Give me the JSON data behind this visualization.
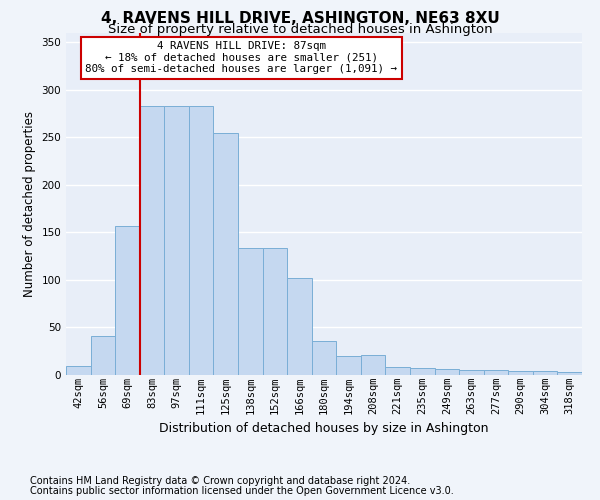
{
  "title": "4, RAVENS HILL DRIVE, ASHINGTON, NE63 8XU",
  "subtitle": "Size of property relative to detached houses in Ashington",
  "xlabel": "Distribution of detached houses by size in Ashington",
  "ylabel": "Number of detached properties",
  "bin_labels": [
    "42sqm",
    "56sqm",
    "69sqm",
    "83sqm",
    "97sqm",
    "111sqm",
    "125sqm",
    "138sqm",
    "152sqm",
    "166sqm",
    "180sqm",
    "194sqm",
    "208sqm",
    "221sqm",
    "235sqm",
    "249sqm",
    "263sqm",
    "277sqm",
    "290sqm",
    "304sqm",
    "318sqm"
  ],
  "bar_heights": [
    9,
    41,
    157,
    283,
    283,
    283,
    254,
    133,
    133,
    102,
    36,
    20,
    21,
    8,
    7,
    6,
    5,
    5,
    4,
    4,
    3
  ],
  "bar_color": "#c5d8f0",
  "bar_edge_color": "#7aaed6",
  "vline_x_index": 2.5,
  "annotation_title": "4 RAVENS HILL DRIVE: 87sqm",
  "annotation_line1": "← 18% of detached houses are smaller (251)",
  "annotation_line2": "80% of semi-detached houses are larger (1,091) →",
  "annotation_box_color": "#ffffff",
  "annotation_border_color": "#cc0000",
  "vline_color": "#cc0000",
  "footer_line1": "Contains HM Land Registry data © Crown copyright and database right 2024.",
  "footer_line2": "Contains public sector information licensed under the Open Government Licence v3.0.",
  "ylim": [
    0,
    360
  ],
  "yticks": [
    0,
    50,
    100,
    150,
    200,
    250,
    300,
    350
  ],
  "fig_bg_color": "#f0f4fa",
  "ax_bg_color": "#e8eef8",
  "grid_color": "#ffffff",
  "title_fontsize": 11,
  "subtitle_fontsize": 9.5,
  "ylabel_fontsize": 8.5,
  "xlabel_fontsize": 9,
  "tick_fontsize": 7.5,
  "footer_fontsize": 7,
  "annot_fontsize": 7.8
}
